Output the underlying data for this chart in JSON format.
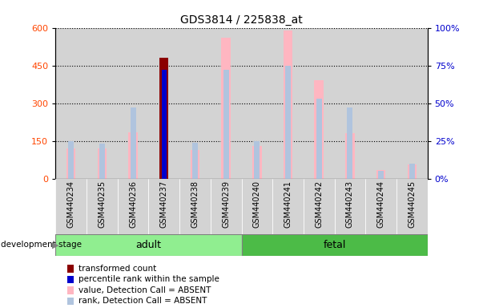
{
  "title": "GDS3814 / 225838_at",
  "samples": [
    "GSM440234",
    "GSM440235",
    "GSM440236",
    "GSM440237",
    "GSM440238",
    "GSM440239",
    "GSM440240",
    "GSM440241",
    "GSM440242",
    "GSM440243",
    "GSM440244",
    "GSM440245"
  ],
  "groups": {
    "adult": [
      0,
      1,
      2,
      3,
      4,
      5
    ],
    "fetal": [
      6,
      7,
      8,
      9,
      10,
      11
    ]
  },
  "bar_values": [
    null,
    null,
    null,
    480,
    null,
    null,
    null,
    null,
    null,
    null,
    null,
    null
  ],
  "bar_rank": [
    null,
    null,
    null,
    72,
    null,
    null,
    null,
    null,
    null,
    null,
    null,
    null
  ],
  "absent_values": [
    120,
    120,
    185,
    null,
    115,
    560,
    130,
    590,
    390,
    180,
    35,
    55
  ],
  "absent_ranks": [
    25,
    23,
    47,
    null,
    24,
    72,
    25,
    75,
    53,
    47,
    5,
    10
  ],
  "ylim_left": [
    0,
    600
  ],
  "ylim_right": [
    0,
    100
  ],
  "yticks_left": [
    0,
    150,
    300,
    450,
    600
  ],
  "yticks_right": [
    0,
    25,
    50,
    75,
    100
  ],
  "bar_color": "#8B0000",
  "rank_color": "#0000CD",
  "absent_value_color": "#FFB6C1",
  "absent_rank_color": "#B0C4DE",
  "group_adult_color": "#90EE90",
  "group_fetal_color": "#4CBB47",
  "tick_label_color_left": "#FF4500",
  "tick_label_color_right": "#0000CD",
  "grid_color": "black",
  "bg_sample_color": "#D3D3D3",
  "legend_items": [
    {
      "label": "transformed count",
      "color": "#8B0000"
    },
    {
      "label": "percentile rank within the sample",
      "color": "#0000CD"
    },
    {
      "label": "value, Detection Call = ABSENT",
      "color": "#FFB6C1"
    },
    {
      "label": "rank, Detection Call = ABSENT",
      "color": "#B0C4DE"
    }
  ]
}
